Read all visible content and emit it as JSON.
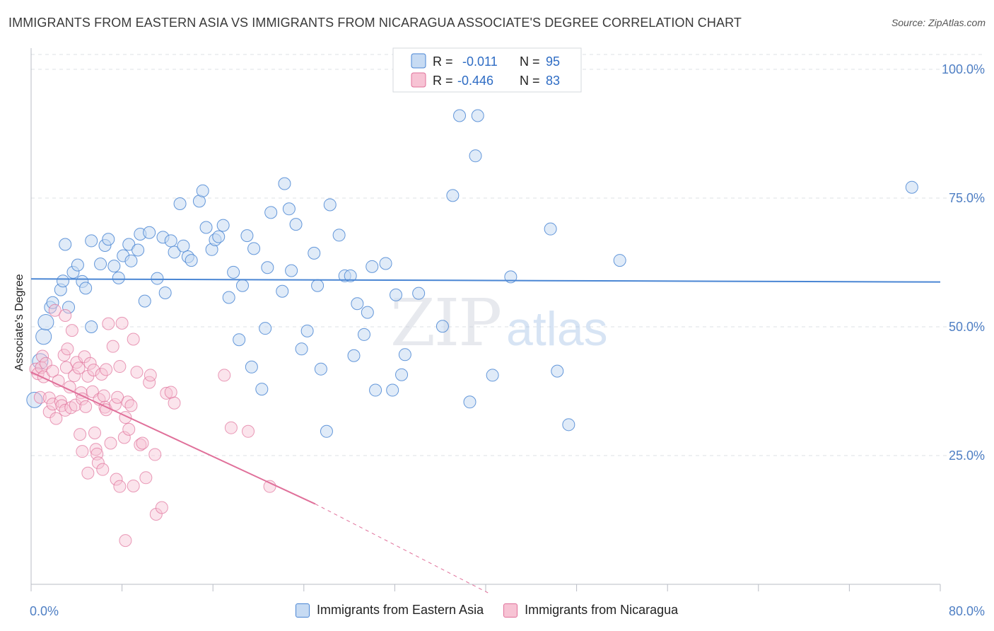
{
  "title": "IMMIGRANTS FROM EASTERN ASIA VS IMMIGRANTS FROM NICARAGUA ASSOCIATE'S DEGREE CORRELATION CHART",
  "source": "Source: ZipAtlas.com",
  "watermark": {
    "zip": "ZIP",
    "atlas": "atlas"
  },
  "colors": {
    "blue": "#4a86d4",
    "blue_fill": "#c7dbf3",
    "pink": "#e0709a",
    "pink_fill": "#f7c3d4",
    "grid": "#dde0e6",
    "tick_text": "#4f7fc4"
  },
  "legend_box": {
    "rows": [
      {
        "r_label": "R =",
        "r_value": "-0.011",
        "n_label": "N =",
        "n_value": "95"
      },
      {
        "r_label": "R =",
        "r_value": "-0.446",
        "n_label": "N =",
        "n_value": "83"
      }
    ]
  },
  "bottom_legend": [
    {
      "label": "Immigrants from Eastern Asia"
    },
    {
      "label": "Immigrants from Nicaragua"
    }
  ],
  "chart_data": {
    "type": "scatter",
    "title": "IMMIGRANTS FROM EASTERN ASIA VS IMMIGRANTS FROM NICARAGUA ASSOCIATE'S DEGREE CORRELATION CHART",
    "xlabel": "",
    "ylabel": "Associate's Degree",
    "xlim": [
      0,
      80
    ],
    "ylim": [
      0,
      103
    ],
    "x_tick_labels": [
      {
        "x": 0,
        "label": "0.0%"
      },
      {
        "x": 80,
        "label": "80.0%"
      }
    ],
    "y_tick_labels": [
      {
        "y": 25,
        "label": "25.0%"
      },
      {
        "y": 50,
        "label": "50.0%"
      },
      {
        "y": 75,
        "label": "75.0%"
      },
      {
        "y": 100,
        "label": "100.0%"
      }
    ],
    "grid": true,
    "series": [
      {
        "name": "Immigrants from Eastern Asia",
        "color": "#4a86d4",
        "trend": {
          "x0": 0,
          "y0": 59.3,
          "x1": 80,
          "y1": 58.7
        },
        "points": [
          [
            0.3,
            35.8
          ],
          [
            0.8,
            43.3
          ],
          [
            1.1,
            48.1
          ],
          [
            1.3,
            50.9
          ],
          [
            1.7,
            53.8
          ],
          [
            1.9,
            54.7
          ],
          [
            2.6,
            57.2
          ],
          [
            2.8,
            58.9
          ],
          [
            3.3,
            53.8
          ],
          [
            3.7,
            60.6
          ],
          [
            4.1,
            62.0
          ],
          [
            4.5,
            58.8
          ],
          [
            4.8,
            57.5
          ],
          [
            5.3,
            50.0
          ],
          [
            5.3,
            66.7
          ],
          [
            6.1,
            62.2
          ],
          [
            6.5,
            65.8
          ],
          [
            6.8,
            67.0
          ],
          [
            7.3,
            61.8
          ],
          [
            7.7,
            59.5
          ],
          [
            8.1,
            63.8
          ],
          [
            8.6,
            66.0
          ],
          [
            8.8,
            62.8
          ],
          [
            9.4,
            64.9
          ],
          [
            9.6,
            68.0
          ],
          [
            10.0,
            55.0
          ],
          [
            10.4,
            68.3
          ],
          [
            11.1,
            59.4
          ],
          [
            11.6,
            67.4
          ],
          [
            11.8,
            56.6
          ],
          [
            12.3,
            66.7
          ],
          [
            12.6,
            64.5
          ],
          [
            13.1,
            73.9
          ],
          [
            13.4,
            65.7
          ],
          [
            13.8,
            63.6
          ],
          [
            14.1,
            62.9
          ],
          [
            14.8,
            74.4
          ],
          [
            15.1,
            76.4
          ],
          [
            15.4,
            69.3
          ],
          [
            15.9,
            65.0
          ],
          [
            16.2,
            66.9
          ],
          [
            16.5,
            67.5
          ],
          [
            16.9,
            69.7
          ],
          [
            17.4,
            55.7
          ],
          [
            17.8,
            60.6
          ],
          [
            18.3,
            47.5
          ],
          [
            18.6,
            58.0
          ],
          [
            19.0,
            67.7
          ],
          [
            19.4,
            42.2
          ],
          [
            19.6,
            65.2
          ],
          [
            20.3,
            37.9
          ],
          [
            20.6,
            49.7
          ],
          [
            20.8,
            61.5
          ],
          [
            21.1,
            72.2
          ],
          [
            22.1,
            56.9
          ],
          [
            22.3,
            77.8
          ],
          [
            22.7,
            72.9
          ],
          [
            22.9,
            60.9
          ],
          [
            23.3,
            69.9
          ],
          [
            23.8,
            45.7
          ],
          [
            24.3,
            49.2
          ],
          [
            24.9,
            64.3
          ],
          [
            25.2,
            58.0
          ],
          [
            25.5,
            41.8
          ],
          [
            26.0,
            29.7
          ],
          [
            26.3,
            73.7
          ],
          [
            27.1,
            67.8
          ],
          [
            27.6,
            59.9
          ],
          [
            28.1,
            59.9
          ],
          [
            28.4,
            44.4
          ],
          [
            28.7,
            54.5
          ],
          [
            29.3,
            48.5
          ],
          [
            29.6,
            52.8
          ],
          [
            30.0,
            61.7
          ],
          [
            30.3,
            37.7
          ],
          [
            31.2,
            62.3
          ],
          [
            31.8,
            37.7
          ],
          [
            32.1,
            56.2
          ],
          [
            32.6,
            40.7
          ],
          [
            32.9,
            44.6
          ],
          [
            34.1,
            56.5
          ],
          [
            36.2,
            50.1
          ],
          [
            37.1,
            75.5
          ],
          [
            37.7,
            91.0
          ],
          [
            38.6,
            35.4
          ],
          [
            39.1,
            83.2
          ],
          [
            39.3,
            91.0
          ],
          [
            40.6,
            40.6
          ],
          [
            42.2,
            59.7
          ],
          [
            45.7,
            69.0
          ],
          [
            46.3,
            41.4
          ],
          [
            47.3,
            31.0
          ],
          [
            51.8,
            62.9
          ],
          [
            77.5,
            77.1
          ],
          [
            3.0,
            66.0
          ]
        ]
      },
      {
        "name": "Immigrants from Nicaragua",
        "color": "#e0709a",
        "trend": {
          "x0": 0,
          "y0": 41.2,
          "x1": 25,
          "y1": 15.6
        },
        "trend_dashed_to": {
          "x": 40.2,
          "y": 0
        },
        "points": [
          [
            0.4,
            41.8
          ],
          [
            0.6,
            40.9
          ],
          [
            0.8,
            36.3
          ],
          [
            0.9,
            42.1
          ],
          [
            1.0,
            44.3
          ],
          [
            1.1,
            40.3
          ],
          [
            1.3,
            42.9
          ],
          [
            1.6,
            36.2
          ],
          [
            1.6,
            33.5
          ],
          [
            1.9,
            35.0
          ],
          [
            1.9,
            41.4
          ],
          [
            2.1,
            53.2
          ],
          [
            2.2,
            32.2
          ],
          [
            2.4,
            39.5
          ],
          [
            2.6,
            35.5
          ],
          [
            2.7,
            34.7
          ],
          [
            2.9,
            44.5
          ],
          [
            3.0,
            52.2
          ],
          [
            3.0,
            33.8
          ],
          [
            3.1,
            42.1
          ],
          [
            3.2,
            45.7
          ],
          [
            3.4,
            38.3
          ],
          [
            3.5,
            34.3
          ],
          [
            3.6,
            49.3
          ],
          [
            3.8,
            40.5
          ],
          [
            3.9,
            34.8
          ],
          [
            4.0,
            43.1
          ],
          [
            4.2,
            42.0
          ],
          [
            4.3,
            29.1
          ],
          [
            4.4,
            37.2
          ],
          [
            4.5,
            25.8
          ],
          [
            4.5,
            36.0
          ],
          [
            4.7,
            44.2
          ],
          [
            4.8,
            34.5
          ],
          [
            5.0,
            21.6
          ],
          [
            5.0,
            40.4
          ],
          [
            5.2,
            42.9
          ],
          [
            5.4,
            37.4
          ],
          [
            5.5,
            41.6
          ],
          [
            5.6,
            29.4
          ],
          [
            5.7,
            26.2
          ],
          [
            5.8,
            25.3
          ],
          [
            5.9,
            23.6
          ],
          [
            6.0,
            35.9
          ],
          [
            6.2,
            40.8
          ],
          [
            6.4,
            36.6
          ],
          [
            6.5,
            34.4
          ],
          [
            6.6,
            33.9
          ],
          [
            6.6,
            41.7
          ],
          [
            6.8,
            50.6
          ],
          [
            7.0,
            27.4
          ],
          [
            7.2,
            46.2
          ],
          [
            7.4,
            34.9
          ],
          [
            7.5,
            20.4
          ],
          [
            7.6,
            36.3
          ],
          [
            7.8,
            42.3
          ],
          [
            8.0,
            50.7
          ],
          [
            8.2,
            28.5
          ],
          [
            8.3,
            32.4
          ],
          [
            8.5,
            35.4
          ],
          [
            8.6,
            30.1
          ],
          [
            9.0,
            19.1
          ],
          [
            9.3,
            41.2
          ],
          [
            9.6,
            27.1
          ],
          [
            9.8,
            27.4
          ],
          [
            10.1,
            20.7
          ],
          [
            10.4,
            39.2
          ],
          [
            10.5,
            40.6
          ],
          [
            10.9,
            25.2
          ],
          [
            11.0,
            13.6
          ],
          [
            11.5,
            14.9
          ],
          [
            11.9,
            37.1
          ],
          [
            12.3,
            37.3
          ],
          [
            12.6,
            35.2
          ],
          [
            9.0,
            47.6
          ],
          [
            17.0,
            40.6
          ],
          [
            17.6,
            30.4
          ],
          [
            19.1,
            29.7
          ],
          [
            21.0,
            19.0
          ],
          [
            7.8,
            19.0
          ],
          [
            8.3,
            8.5
          ],
          [
            6.3,
            22.3
          ],
          [
            8.8,
            34.7
          ]
        ]
      }
    ]
  }
}
